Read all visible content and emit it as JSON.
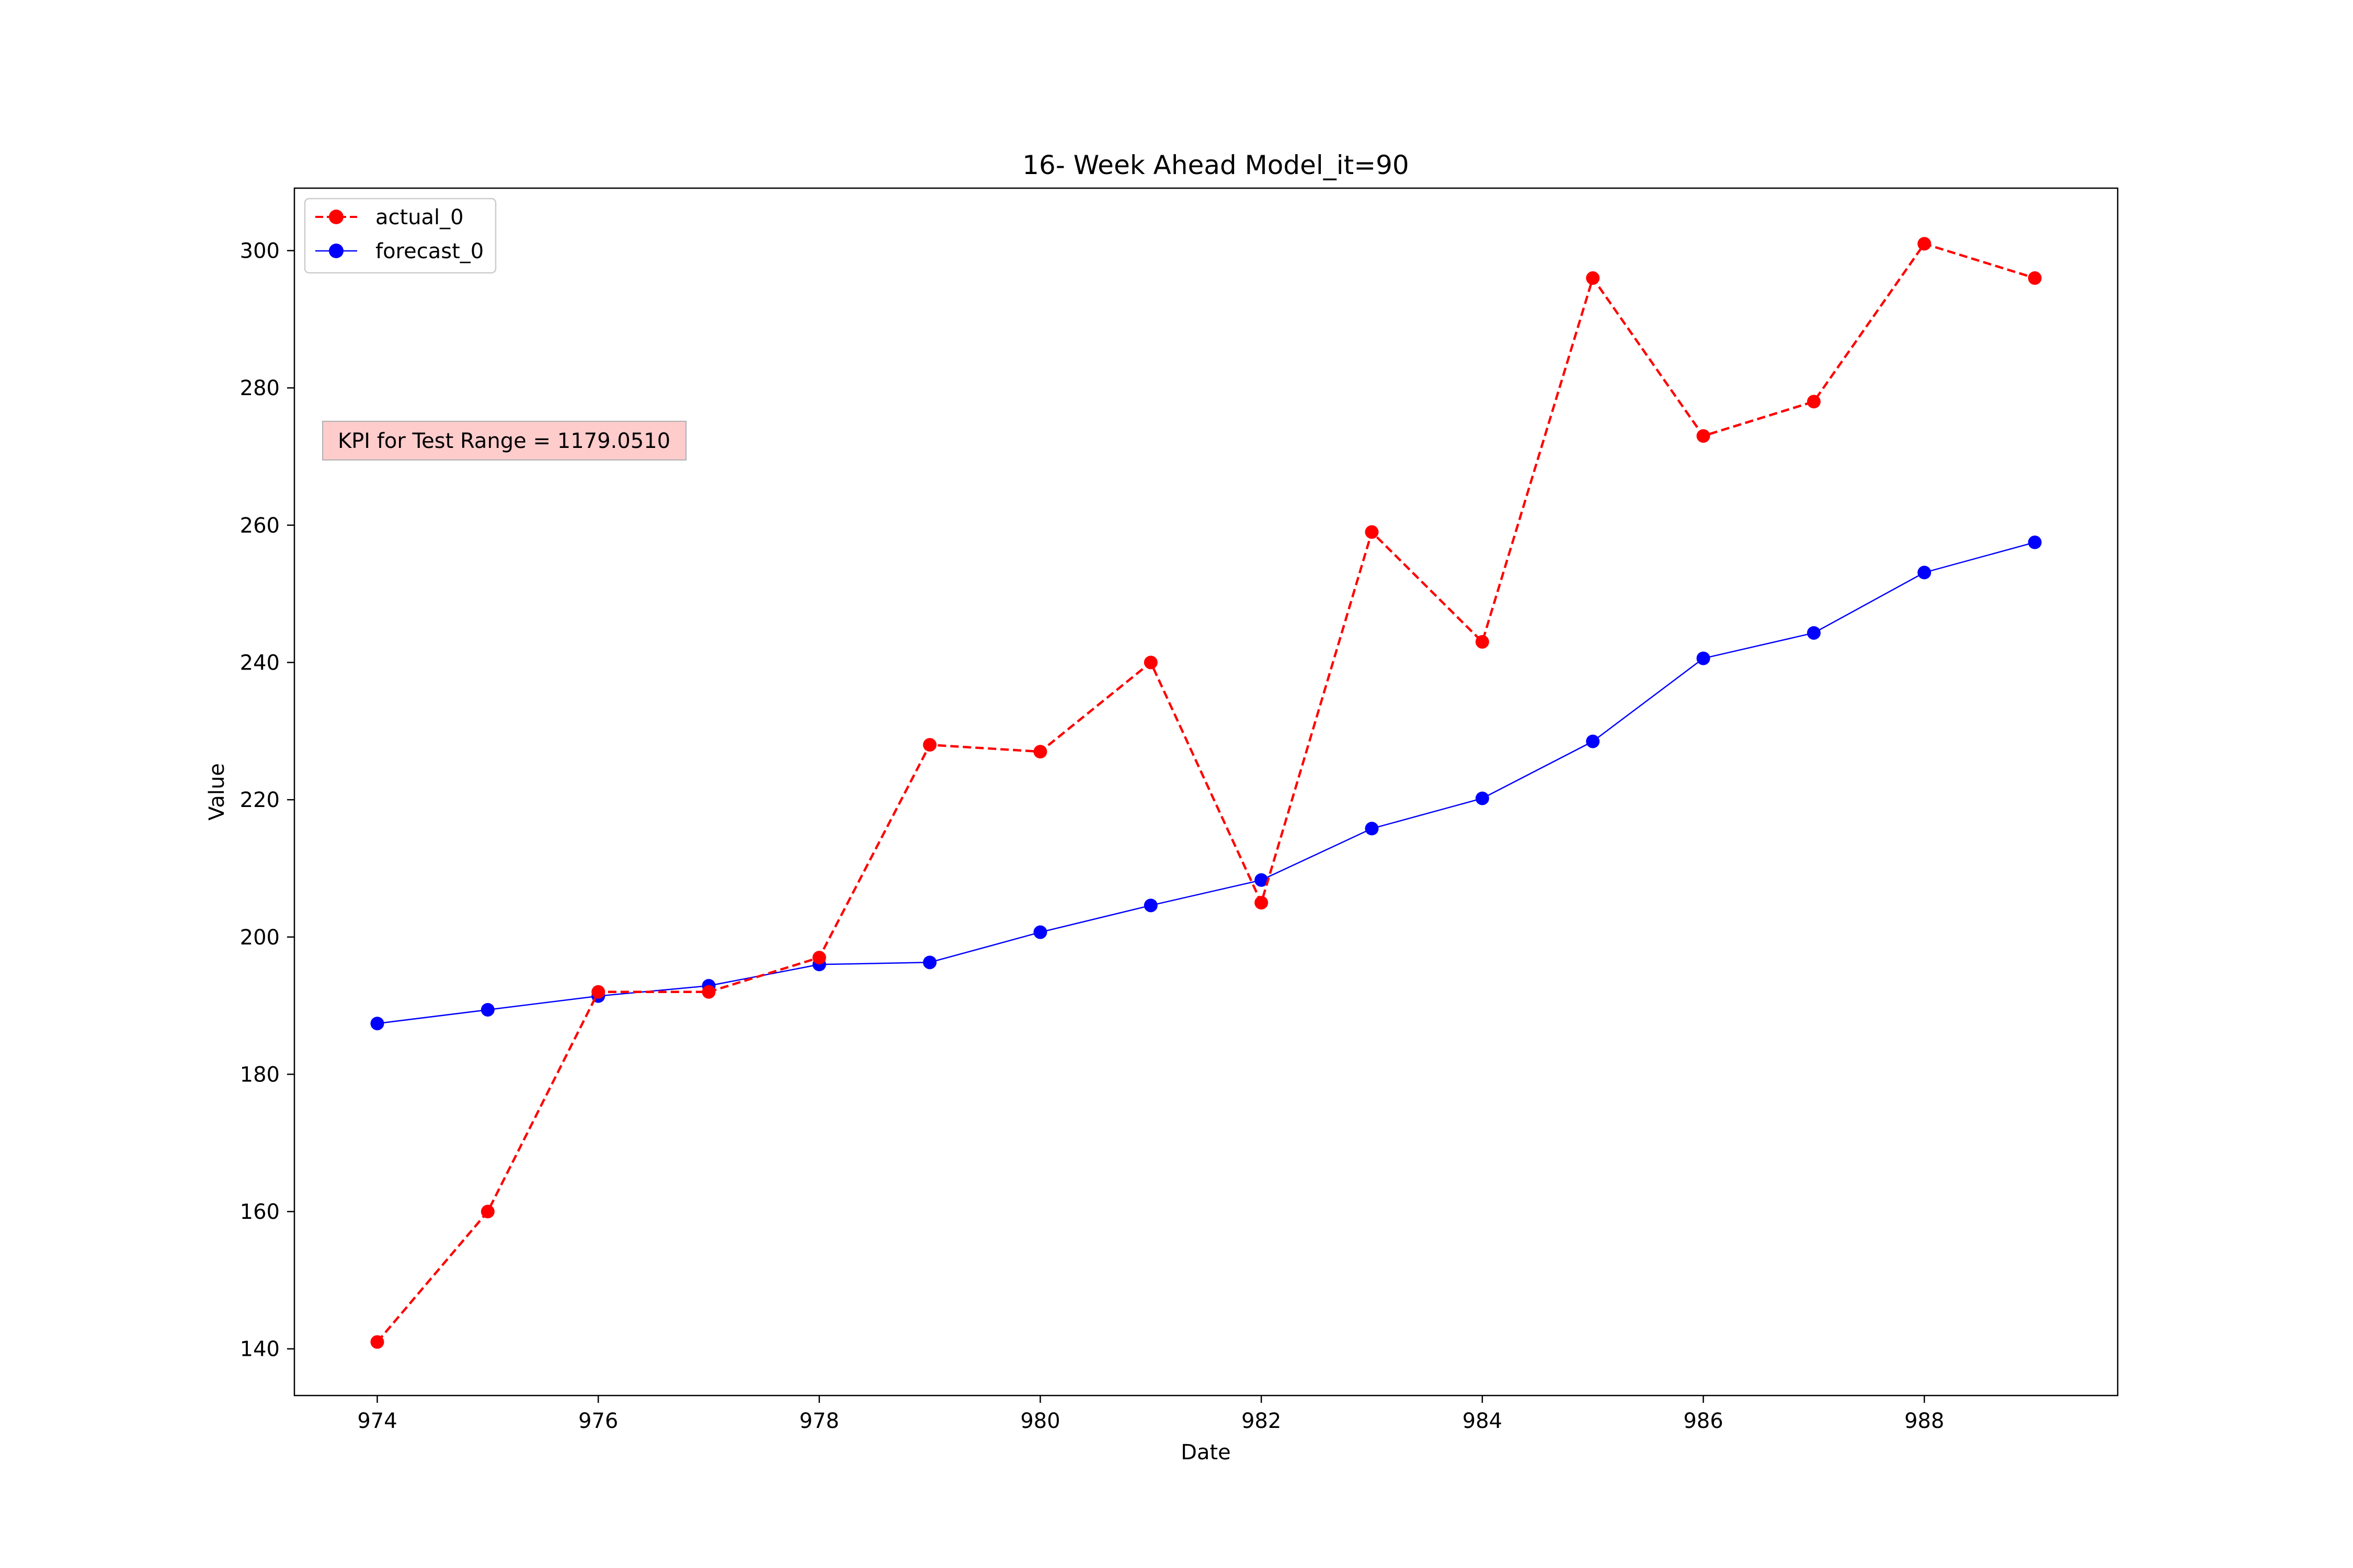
{
  "chart_data": {
    "type": "line",
    "title": "16- Week Ahead Model_it=90",
    "xlabel": "Date",
    "ylabel": "Value",
    "x": [
      974,
      975,
      976,
      977,
      978,
      979,
      980,
      981,
      982,
      983,
      984,
      985,
      986,
      987,
      988,
      989
    ],
    "xlim": [
      973.25,
      989.75
    ],
    "ylim": [
      133.2,
      309.1
    ],
    "xticks": [
      974,
      976,
      978,
      980,
      982,
      984,
      986,
      988
    ],
    "yticks": [
      140,
      160,
      180,
      200,
      220,
      240,
      260,
      280,
      300
    ],
    "grid": false,
    "legend_position": "top-left",
    "series": [
      {
        "name": "actual_0",
        "color": "#ff0000",
        "line_style": "dashed",
        "marker": "circle",
        "values": [
          141,
          160,
          192,
          192,
          197,
          228,
          227,
          240,
          205,
          259,
          243,
          296,
          273,
          278,
          301,
          296
        ]
      },
      {
        "name": "forecast_0",
        "color": "#0000ff",
        "line_style": "solid",
        "marker": "circle",
        "values": [
          187.4,
          189.4,
          191.4,
          192.9,
          196.0,
          196.3,
          200.7,
          204.6,
          208.3,
          215.8,
          220.2,
          228.5,
          240.6,
          244.3,
          253.1,
          257.5
        ]
      }
    ],
    "annotations": [
      {
        "text": "KPI for Test Range = 1179.0510",
        "background": "#ffcccc"
      }
    ]
  }
}
